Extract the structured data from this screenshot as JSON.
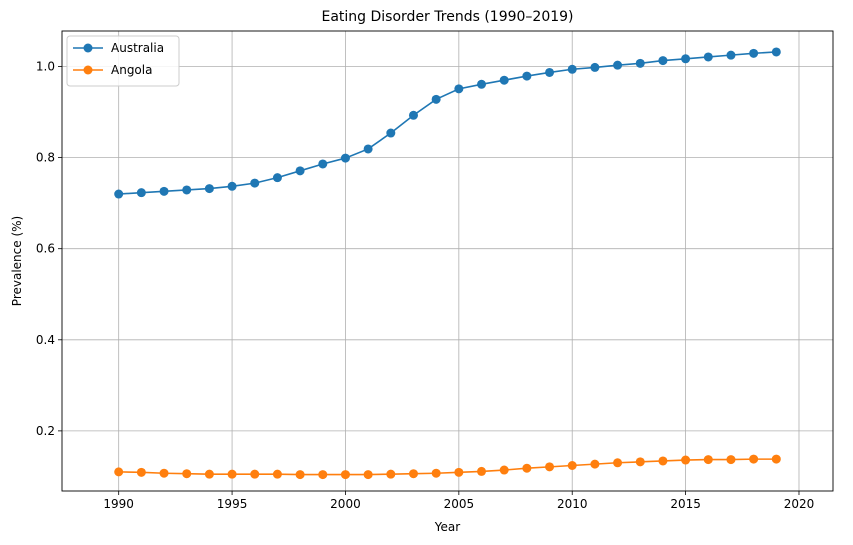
{
  "chart_data": {
    "type": "line",
    "title": "Eating Disorder Trends (1990–2019)",
    "xlabel": "Year",
    "ylabel": "Prevalence (%)",
    "xlim": [
      1987.5,
      2021.5
    ],
    "ylim": [
      0.068,
      1.078
    ],
    "x_ticks": [
      1990,
      1995,
      2000,
      2005,
      2010,
      2015,
      2020
    ],
    "y_ticks": [
      0.2,
      0.4,
      0.6,
      0.8,
      1.0
    ],
    "x_tick_labels": [
      "1990",
      "1995",
      "2000",
      "2005",
      "2010",
      "2015",
      "2020"
    ],
    "y_tick_labels": [
      "0.2",
      "0.4",
      "0.6",
      "0.8",
      "1.0"
    ],
    "grid": true,
    "legend_position": "top-left",
    "x": [
      1990,
      1991,
      1992,
      1993,
      1994,
      1995,
      1996,
      1997,
      1998,
      1999,
      2000,
      2001,
      2002,
      2003,
      2004,
      2005,
      2006,
      2007,
      2008,
      2009,
      2010,
      2011,
      2012,
      2013,
      2014,
      2015,
      2016,
      2017,
      2018,
      2019
    ],
    "series": [
      {
        "name": "Australia",
        "color": "#1f77b4",
        "values": [
          0.72,
          0.723,
          0.726,
          0.729,
          0.732,
          0.737,
          0.744,
          0.756,
          0.771,
          0.786,
          0.799,
          0.819,
          0.854,
          0.893,
          0.928,
          0.951,
          0.961,
          0.97,
          0.979,
          0.987,
          0.994,
          0.998,
          1.003,
          1.007,
          1.013,
          1.017,
          1.021,
          1.025,
          1.029,
          1.032
        ]
      },
      {
        "name": "Angola",
        "color": "#ff7f0e",
        "values": [
          0.11,
          0.109,
          0.107,
          0.106,
          0.105,
          0.105,
          0.105,
          0.105,
          0.104,
          0.104,
          0.104,
          0.104,
          0.105,
          0.106,
          0.107,
          0.109,
          0.111,
          0.114,
          0.118,
          0.121,
          0.124,
          0.127,
          0.13,
          0.132,
          0.134,
          0.136,
          0.137,
          0.137,
          0.138,
          0.138
        ]
      }
    ]
  }
}
